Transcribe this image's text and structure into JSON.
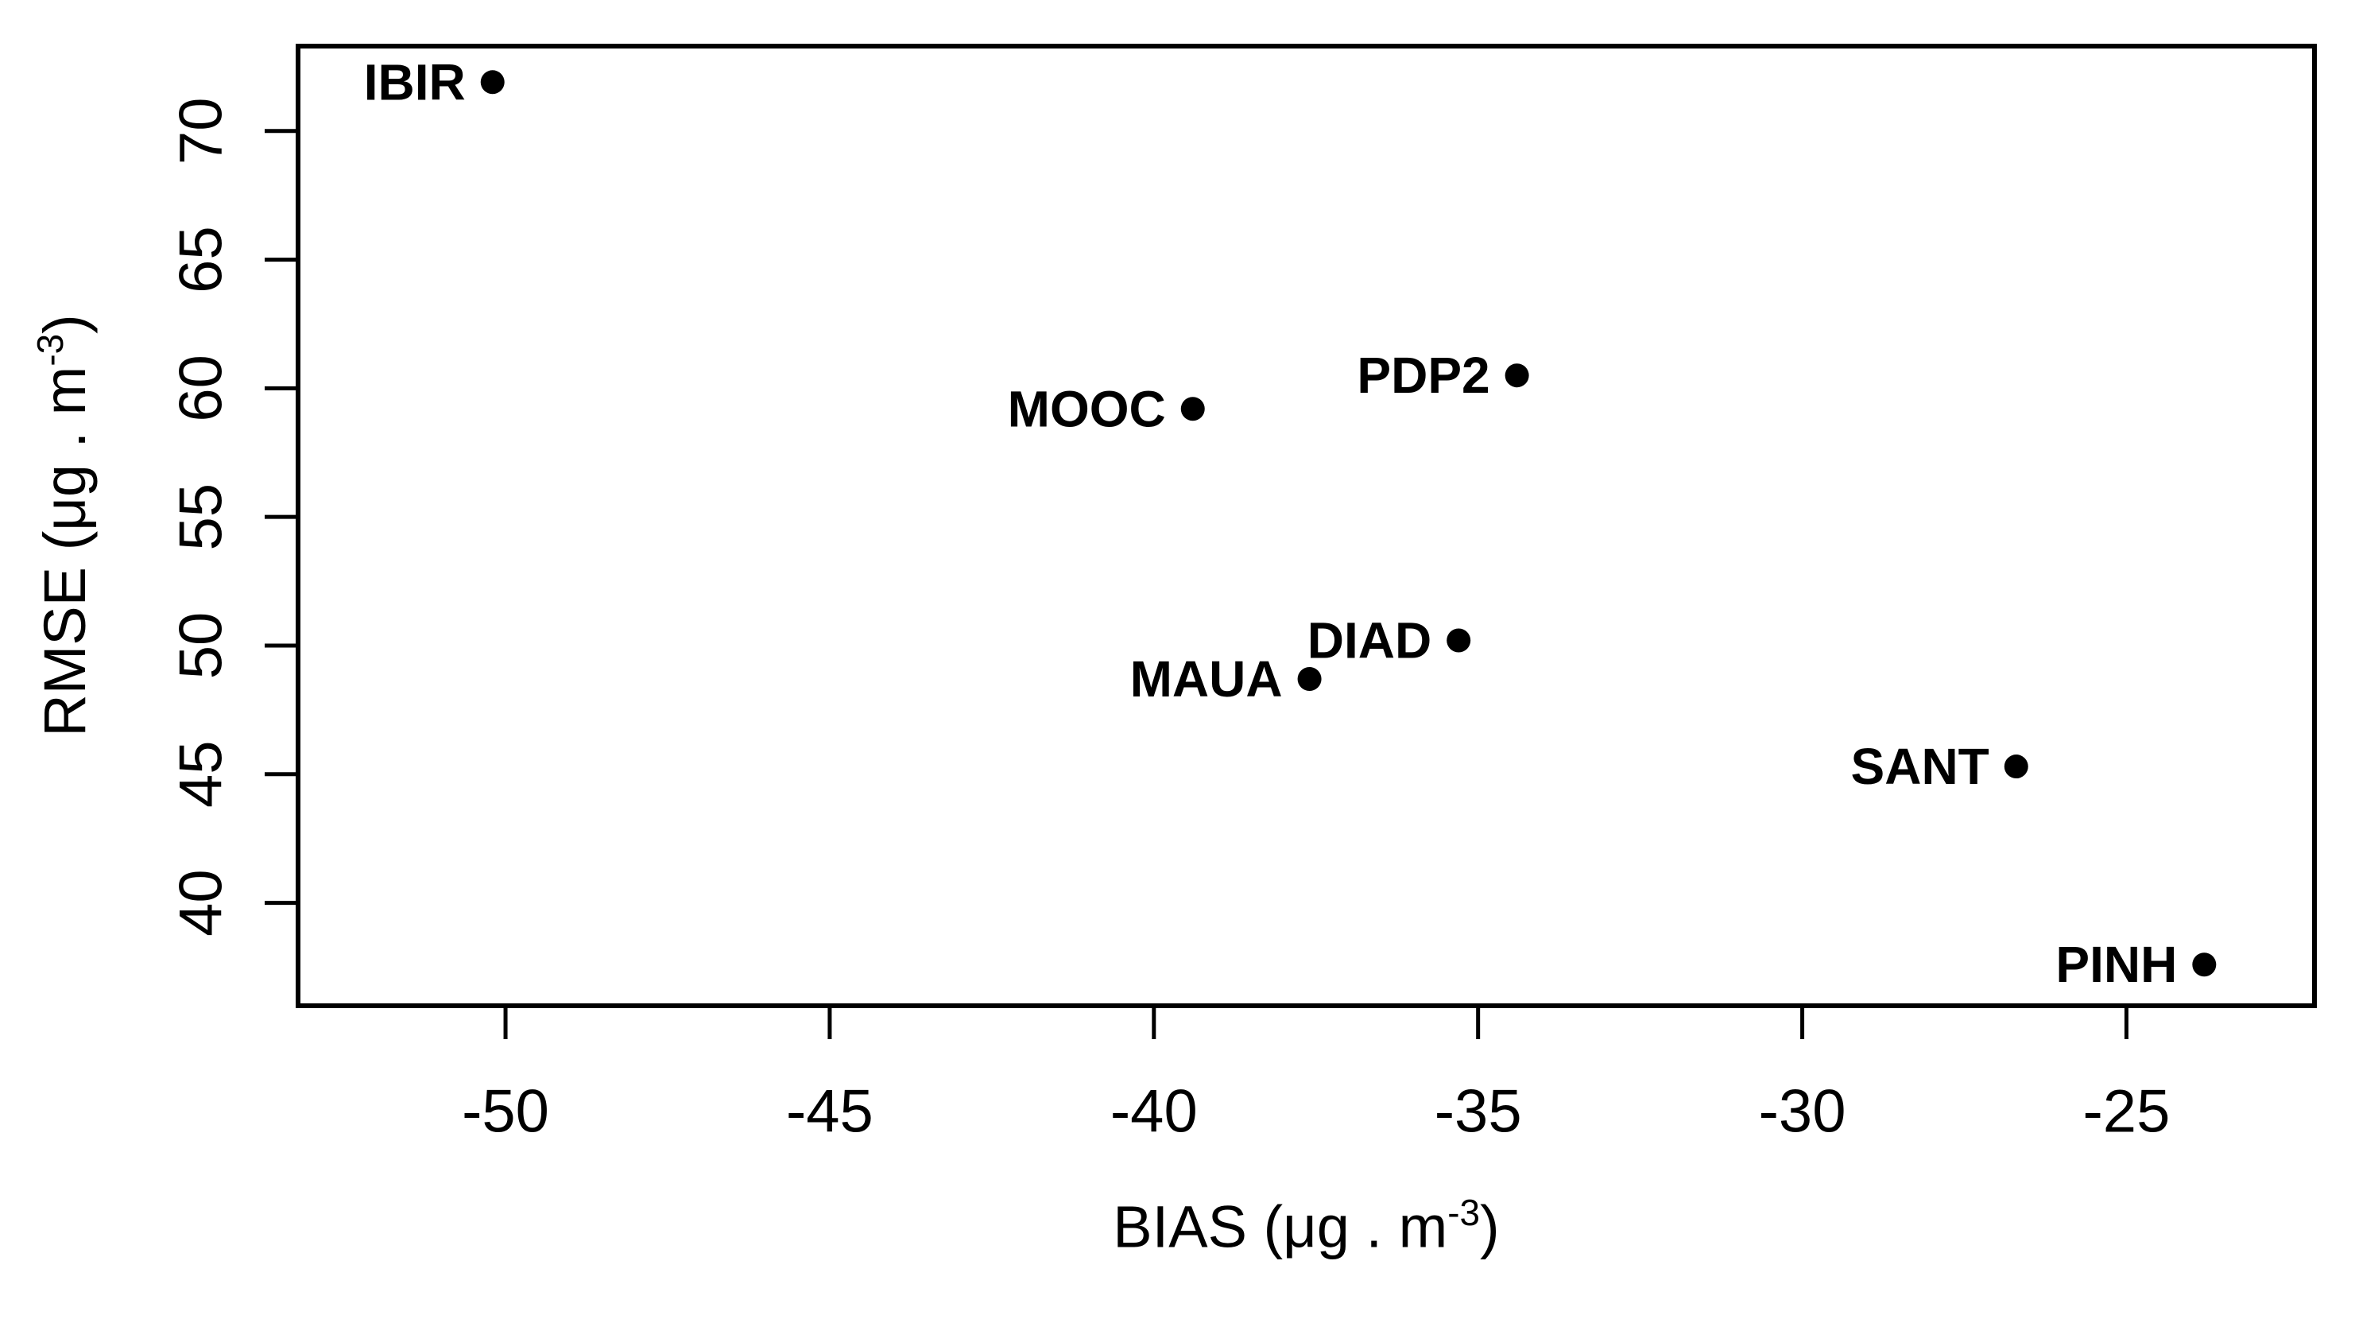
{
  "figure": {
    "background_color": "#ffffff",
    "foreground_color": "#000000"
  },
  "chart_data": {
    "type": "scatter",
    "title": "",
    "xlabel": {
      "prefix": "BIAS (μg . m",
      "sup": "-3",
      "suffix": ")"
    },
    "ylabel": {
      "prefix": "RMSE (μg . m",
      "sup": "-3",
      "suffix": ")"
    },
    "xlim": [
      -53.2,
      -22.1
    ],
    "ylim": [
      36.0,
      73.3
    ],
    "x_ticks": [
      -50,
      -45,
      -40,
      -35,
      -30,
      -25
    ],
    "y_ticks": [
      40,
      45,
      50,
      55,
      60,
      65,
      70
    ],
    "grid": false,
    "legend": "none",
    "marker": {
      "shape": "filled-circle",
      "color": "#000000",
      "radius_px": 15
    },
    "label_position": "left-of-point",
    "points": [
      {
        "label": "IBIR",
        "x": -50.2,
        "y": 71.9
      },
      {
        "label": "MOOC",
        "x": -39.4,
        "y": 59.2
      },
      {
        "label": "PDP2",
        "x": -34.4,
        "y": 60.5
      },
      {
        "label": "DIAD",
        "x": -35.3,
        "y": 50.2
      },
      {
        "label": "MAUA",
        "x": -37.6,
        "y": 48.7
      },
      {
        "label": "SANT",
        "x": -26.7,
        "y": 45.3
      },
      {
        "label": "PINH",
        "x": -23.8,
        "y": 37.6
      }
    ]
  }
}
